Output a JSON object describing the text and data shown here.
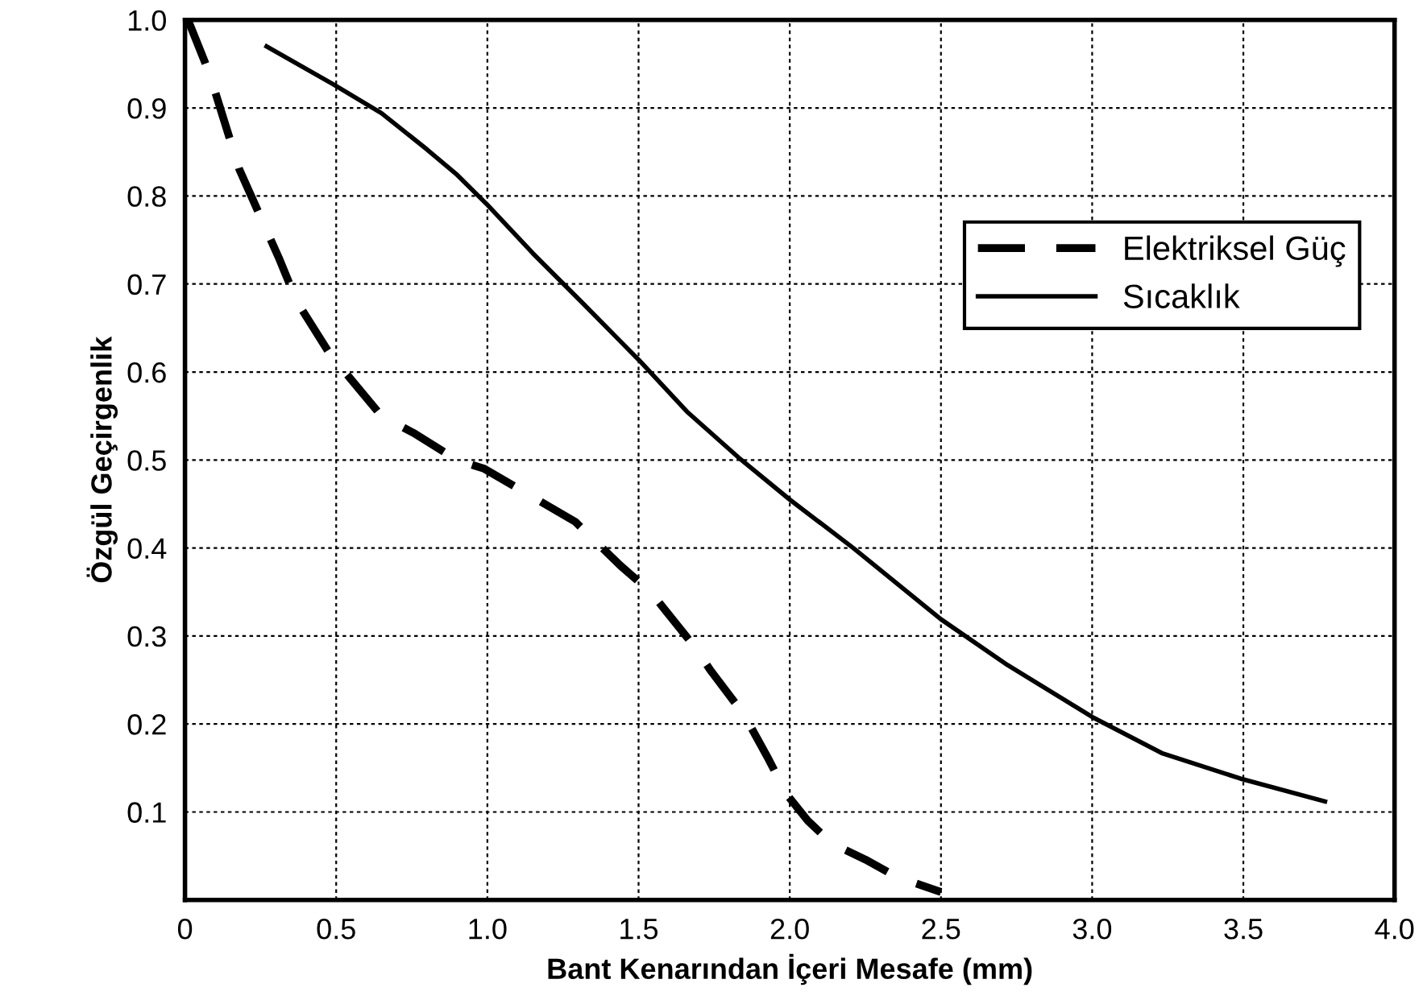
{
  "chart_data": {
    "type": "line",
    "xlabel": "Bant Kenarından İçeri Mesafe (mm)",
    "ylabel": "Özgül Geçirgenlik",
    "xlim": [
      0,
      4.0
    ],
    "ylim": [
      0,
      1.0
    ],
    "xticks": [
      {
        "value": 0,
        "label": "0"
      },
      0.5,
      {
        "value": 1.0,
        "label": "1.0"
      },
      1.5,
      {
        "value": 2.0,
        "label": "2.0"
      },
      2.5,
      {
        "value": 3.0,
        "label": "3.0"
      },
      3.5,
      {
        "value": 4.0,
        "label": "4.0"
      }
    ],
    "yticks": [
      0.1,
      0.2,
      0.3,
      0.4,
      0.5,
      0.6,
      0.7,
      0.8,
      0.9,
      {
        "value": 1.0,
        "label": "1.0"
      }
    ],
    "grid": true,
    "legend": "right",
    "series": [
      {
        "name": "Elektriksel Güç",
        "color": "#000000",
        "line_style": "dashed",
        "x": [
          0.01,
          0.08,
          0.18,
          0.31,
          0.37,
          0.48,
          0.65,
          0.76,
          0.9,
          0.99,
          1.14,
          1.29,
          1.44,
          1.54,
          1.68,
          1.74,
          1.85,
          1.93,
          1.99,
          2.06,
          2.14,
          2.25,
          2.35,
          2.5
        ],
        "values": [
          1.0,
          0.94,
          0.83,
          0.73,
          0.68,
          0.62,
          0.55,
          0.53,
          0.5,
          0.49,
          0.46,
          0.43,
          0.38,
          0.35,
          0.29,
          0.26,
          0.21,
          0.16,
          0.12,
          0.09,
          0.064,
          0.046,
          0.027,
          0.009
        ]
      },
      {
        "name": "Sıcaklık",
        "color": "#000000",
        "line_style": "solid",
        "x": [
          0.27,
          0.49,
          0.65,
          0.8,
          0.9,
          1.0,
          1.15,
          1.31,
          1.5,
          1.66,
          1.83,
          2.0,
          2.21,
          2.5,
          2.72,
          3.0,
          3.23,
          3.49,
          3.77
        ],
        "values": [
          0.97,
          0.927,
          0.894,
          0.853,
          0.824,
          0.79,
          0.735,
          0.68,
          0.614,
          0.555,
          0.503,
          0.455,
          0.4,
          0.319,
          0.267,
          0.208,
          0.167,
          0.138,
          0.112
        ]
      }
    ]
  }
}
